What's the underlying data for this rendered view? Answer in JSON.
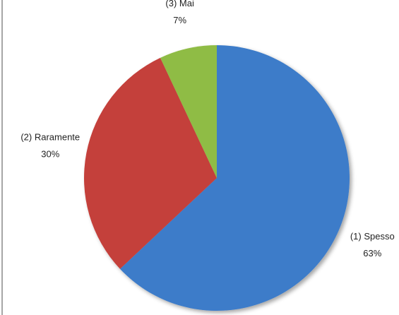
{
  "chart_data": {
    "type": "pie",
    "categories": [
      "(1) Spesso",
      "(2) Raramente",
      "(3) Mai"
    ],
    "values": [
      63,
      30,
      7
    ],
    "value_labels": [
      "63%",
      "30%",
      "7%"
    ],
    "colors": [
      "#3d7cc9",
      "#c4403b",
      "#8fbc45"
    ]
  }
}
